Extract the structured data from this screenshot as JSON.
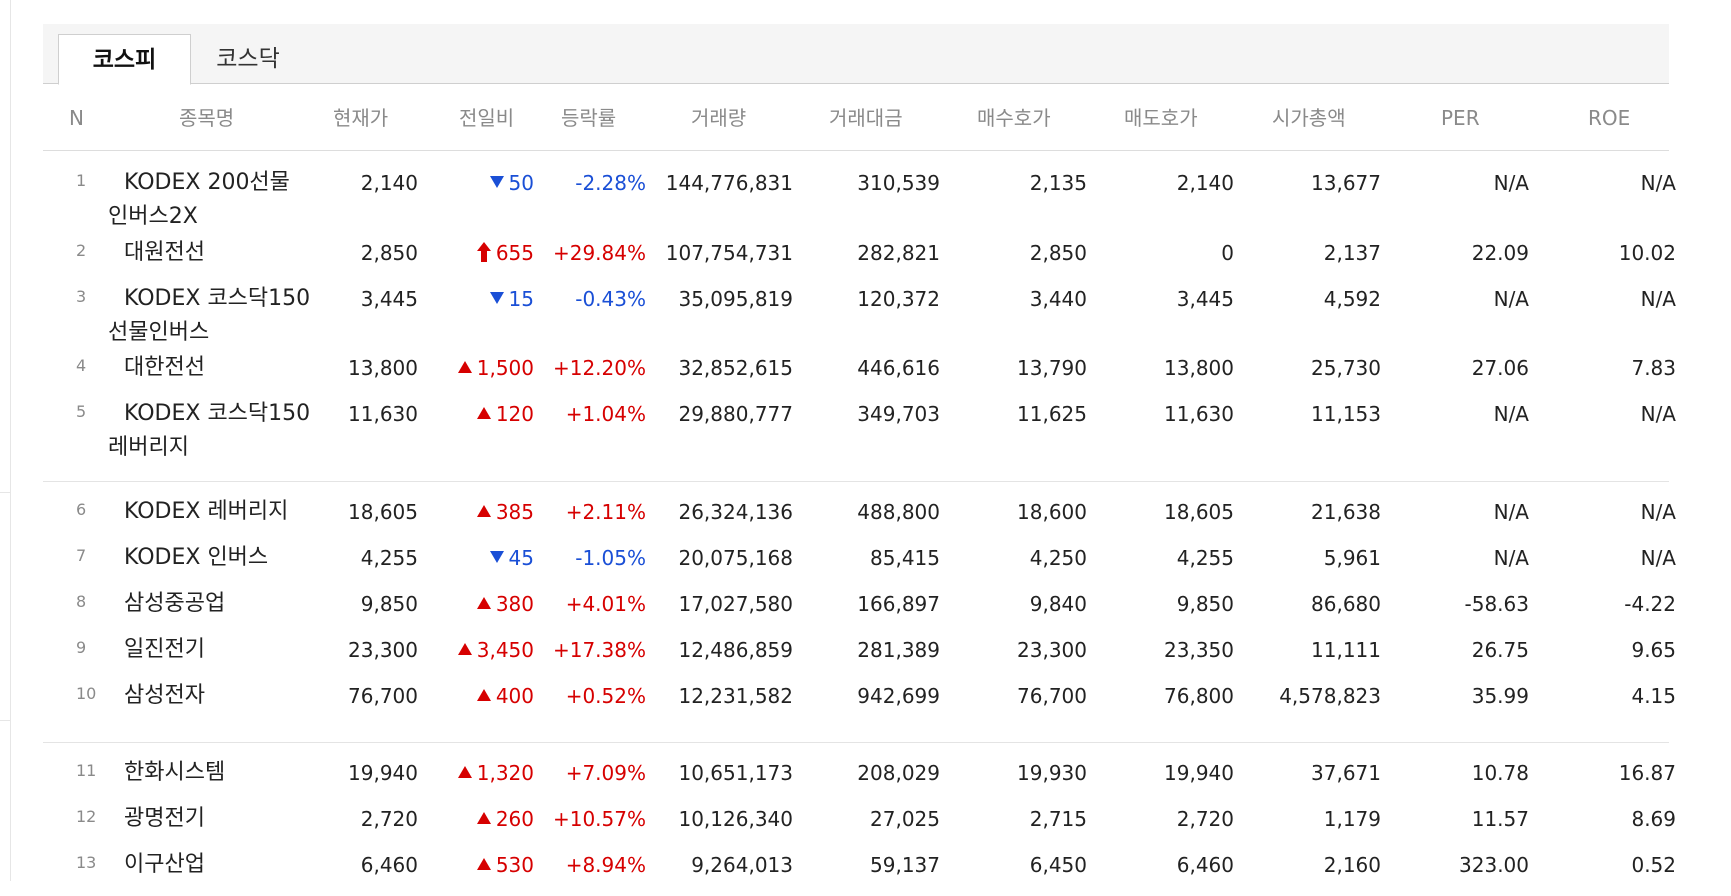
{
  "tabs": [
    {
      "label": "코스피",
      "active": true
    },
    {
      "label": "코스닥",
      "active": false
    }
  ],
  "columns": [
    "N",
    "종목명",
    "현재가",
    "전일비",
    "등락률",
    "거래량",
    "거래대금",
    "매수호가",
    "매도호가",
    "시가총액",
    "PER",
    "ROE"
  ],
  "colors": {
    "up": "#d60000",
    "down": "#1a4fd6"
  },
  "rows": [
    {
      "n": "1",
      "name": [
        "KODEX 200선물",
        "인버스2X"
      ],
      "price": "2,140",
      "change_icon": "triangle-down",
      "change": "50",
      "rate": "-2.28%",
      "volume": "144,776,831",
      "amount": "310,539",
      "bid": "2,135",
      "ask": "2,140",
      "mcap": "13,677",
      "per": "N/A",
      "roe": "N/A"
    },
    {
      "n": "2",
      "name": [
        "대원전선"
      ],
      "price": "2,850",
      "change_icon": "arrow-up",
      "change": "655",
      "rate": "+29.84%",
      "volume": "107,754,731",
      "amount": "282,821",
      "bid": "2,850",
      "ask": "0",
      "mcap": "2,137",
      "per": "22.09",
      "roe": "10.02"
    },
    {
      "n": "3",
      "name": [
        "KODEX 코스닥150",
        "선물인버스"
      ],
      "price": "3,445",
      "change_icon": "triangle-down",
      "change": "15",
      "rate": "-0.43%",
      "volume": "35,095,819",
      "amount": "120,372",
      "bid": "3,440",
      "ask": "3,445",
      "mcap": "4,592",
      "per": "N/A",
      "roe": "N/A"
    },
    {
      "n": "4",
      "name": [
        "대한전선"
      ],
      "price": "13,800",
      "change_icon": "triangle-up",
      "change": "1,500",
      "rate": "+12.20%",
      "volume": "32,852,615",
      "amount": "446,616",
      "bid": "13,790",
      "ask": "13,800",
      "mcap": "25,730",
      "per": "27.06",
      "roe": "7.83"
    },
    {
      "n": "5",
      "name": [
        "KODEX 코스닥150",
        "레버리지"
      ],
      "price": "11,630",
      "change_icon": "triangle-up",
      "change": "120",
      "rate": "+1.04%",
      "volume": "29,880,777",
      "amount": "349,703",
      "bid": "11,625",
      "ask": "11,630",
      "mcap": "11,153",
      "per": "N/A",
      "roe": "N/A"
    },
    {
      "n": "6",
      "name": [
        "KODEX 레버리지"
      ],
      "price": "18,605",
      "change_icon": "triangle-up",
      "change": "385",
      "rate": "+2.11%",
      "volume": "26,324,136",
      "amount": "488,800",
      "bid": "18,600",
      "ask": "18,605",
      "mcap": "21,638",
      "per": "N/A",
      "roe": "N/A"
    },
    {
      "n": "7",
      "name": [
        "KODEX 인버스"
      ],
      "price": "4,255",
      "change_icon": "triangle-down",
      "change": "45",
      "rate": "-1.05%",
      "volume": "20,075,168",
      "amount": "85,415",
      "bid": "4,250",
      "ask": "4,255",
      "mcap": "5,961",
      "per": "N/A",
      "roe": "N/A"
    },
    {
      "n": "8",
      "name": [
        "삼성중공업"
      ],
      "price": "9,850",
      "change_icon": "triangle-up",
      "change": "380",
      "rate": "+4.01%",
      "volume": "17,027,580",
      "amount": "166,897",
      "bid": "9,840",
      "ask": "9,850",
      "mcap": "86,680",
      "per": "-58.63",
      "roe": "-4.22"
    },
    {
      "n": "9",
      "name": [
        "일진전기"
      ],
      "price": "23,300",
      "change_icon": "triangle-up",
      "change": "3,450",
      "rate": "+17.38%",
      "volume": "12,486,859",
      "amount": "281,389",
      "bid": "23,300",
      "ask": "23,350",
      "mcap": "11,111",
      "per": "26.75",
      "roe": "9.65"
    },
    {
      "n": "10",
      "name": [
        "삼성전자"
      ],
      "price": "76,700",
      "change_icon": "triangle-up",
      "change": "400",
      "rate": "+0.52%",
      "volume": "12,231,582",
      "amount": "942,699",
      "bid": "76,700",
      "ask": "76,800",
      "mcap": "4,578,823",
      "per": "35.99",
      "roe": "4.15"
    },
    {
      "n": "11",
      "name": [
        "한화시스템"
      ],
      "price": "19,940",
      "change_icon": "triangle-up",
      "change": "1,320",
      "rate": "+7.09%",
      "volume": "10,651,173",
      "amount": "208,029",
      "bid": "19,930",
      "ask": "19,940",
      "mcap": "37,671",
      "per": "10.78",
      "roe": "16.87"
    },
    {
      "n": "12",
      "name": [
        "광명전기"
      ],
      "price": "2,720",
      "change_icon": "triangle-up",
      "change": "260",
      "rate": "+10.57%",
      "volume": "10,126,340",
      "amount": "27,025",
      "bid": "2,715",
      "ask": "2,720",
      "mcap": "1,179",
      "per": "11.57",
      "roe": "8.69"
    },
    {
      "n": "13",
      "name": [
        "이구산업"
      ],
      "price": "6,460",
      "change_icon": "triangle-up",
      "change": "530",
      "rate": "+8.94%",
      "volume": "9,264,013",
      "amount": "59,137",
      "bid": "6,450",
      "ask": "6,460",
      "mcap": "2,160",
      "per": "323.00",
      "roe": "0.52"
    }
  ]
}
